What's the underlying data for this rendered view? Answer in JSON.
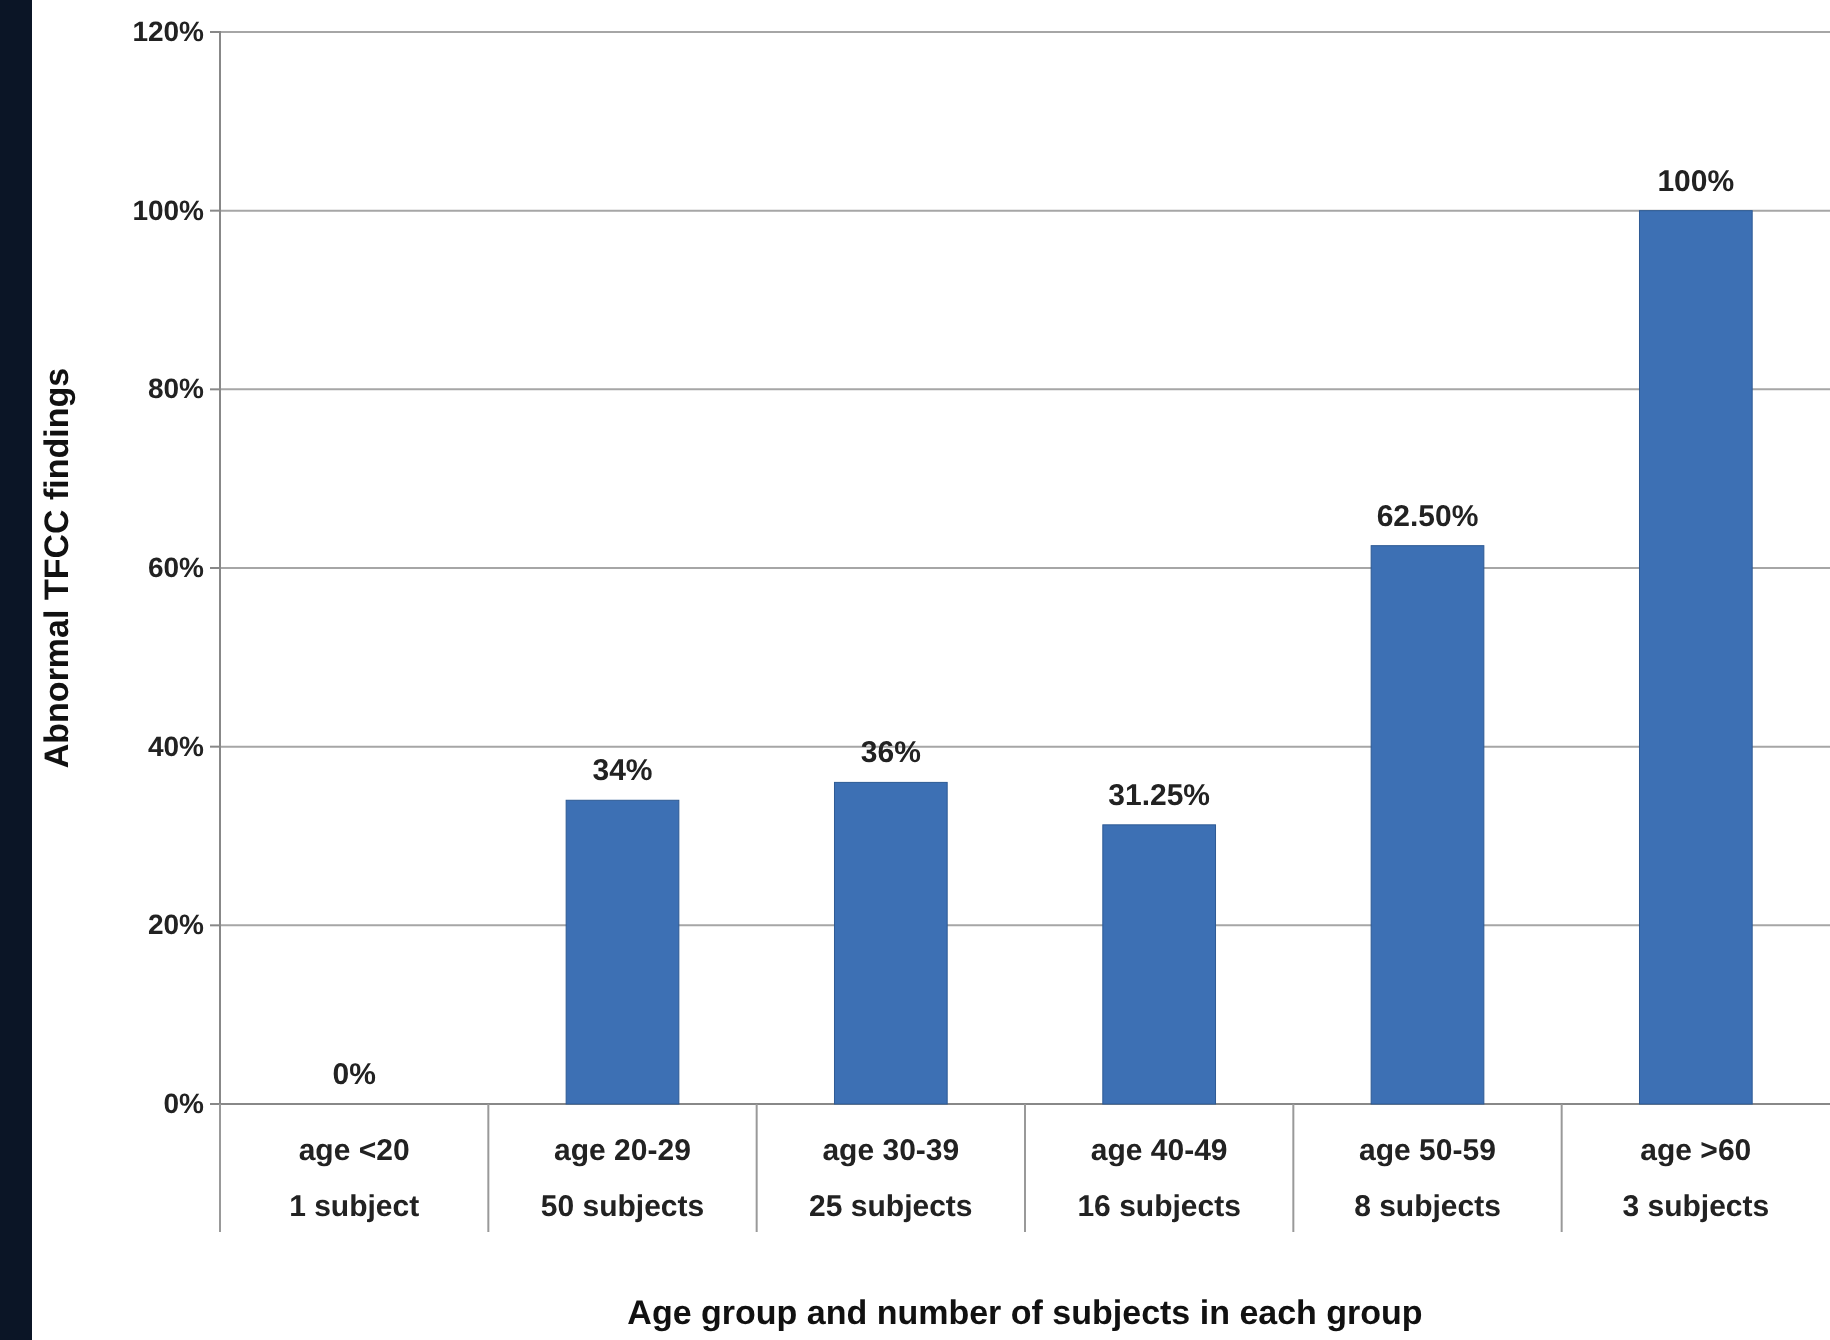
{
  "chart_data": {
    "type": "bar",
    "xlabel": "Age group and number of subjects in each group",
    "ylabel": "Abnormal TFCC findings",
    "categories": [
      "age <20\n1 subject",
      "age 20-29\n50 subjects",
      "age 30-39\n25 subjects",
      "age 40-49\n16 subjects",
      "age 50-59\n8 subjects",
      "age >60\n3 subjects"
    ],
    "values": [
      0,
      34,
      36,
      31.25,
      62.5,
      100
    ],
    "value_labels": [
      "0%",
      "34%",
      "36%",
      "31.25%",
      "62.50%",
      "100%"
    ],
    "color": "#3d70b4",
    "ylim": [
      0,
      120
    ],
    "yticks": [
      {
        "value": 0,
        "label": "0%"
      },
      {
        "value": 20,
        "label": "20%"
      },
      {
        "value": 40,
        "label": "40%"
      },
      {
        "value": 60,
        "label": "60%"
      },
      {
        "value": 80,
        "label": "80%"
      },
      {
        "value": 100,
        "label": "100%"
      },
      {
        "value": 120,
        "label": "120%"
      }
    ],
    "grid": "y"
  }
}
